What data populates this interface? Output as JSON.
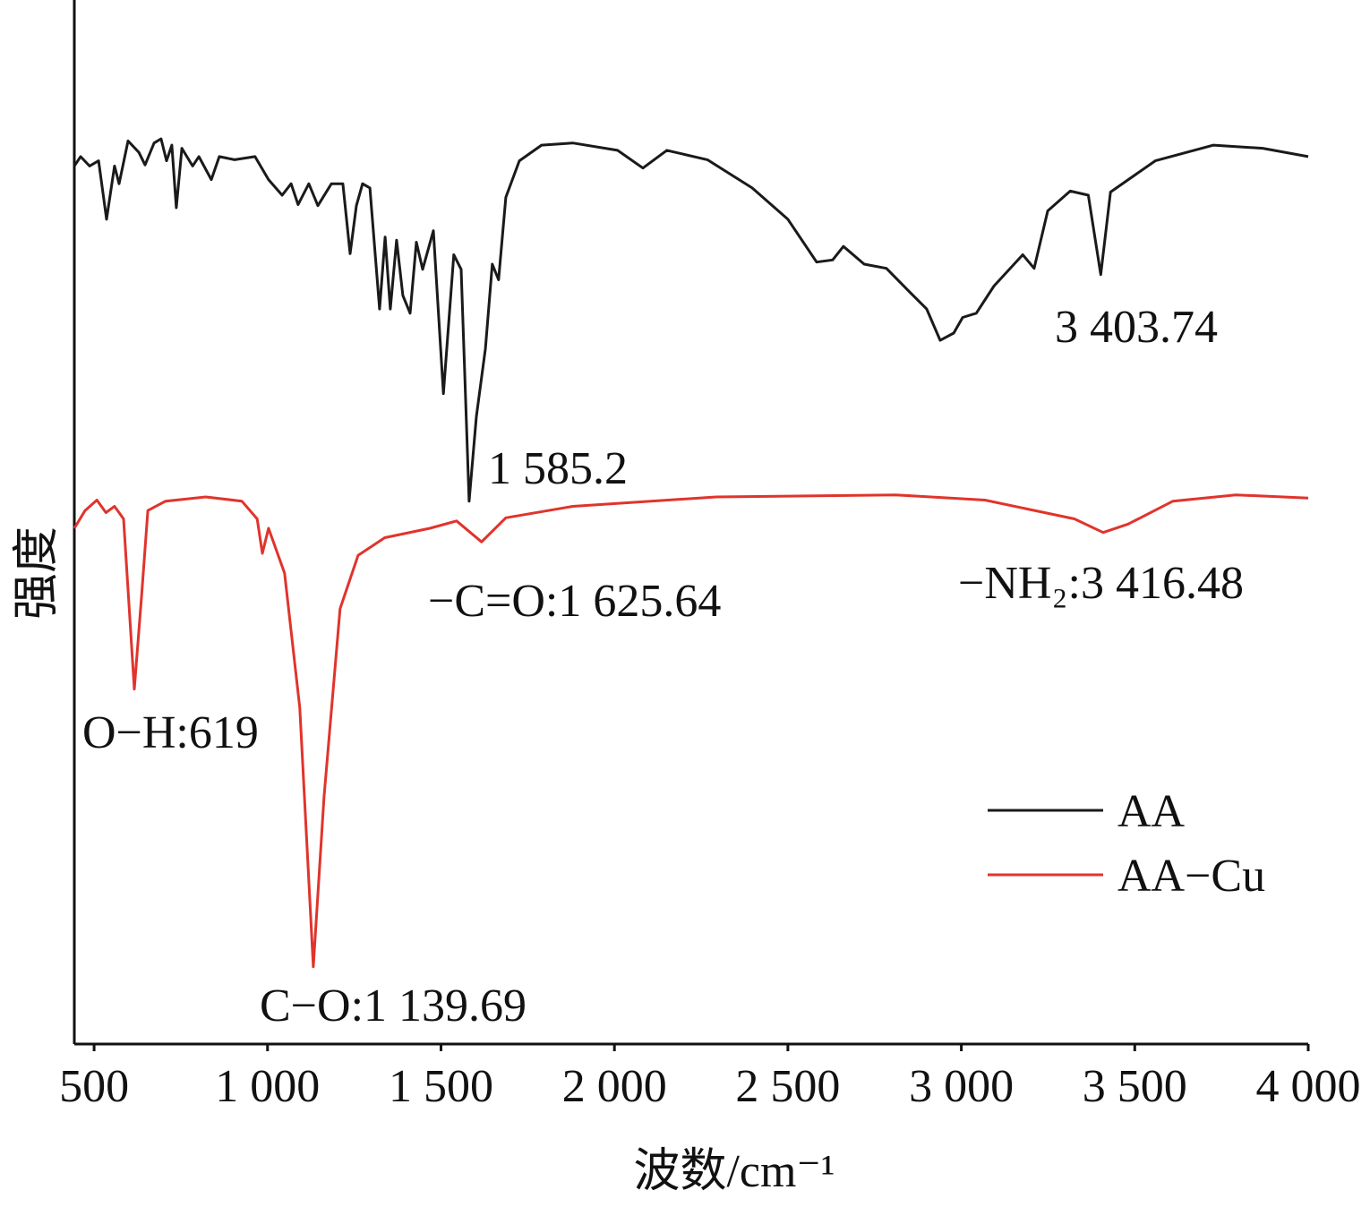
{
  "chart_data": {
    "type": "line",
    "xlabel": "波数/cm⁻¹",
    "ylabel": "强度",
    "xlim": [
      443,
      4000
    ],
    "ylim": [
      0,
      100
    ],
    "xticks": [
      500,
      {
        "value": 1000,
        "label": "1 000"
      },
      {
        "value": 1500,
        "label": "1 500"
      },
      {
        "value": 2000,
        "label": "2 000"
      },
      {
        "value": 2500,
        "label": "2 500"
      },
      {
        "value": 3000,
        "label": "3 000"
      },
      {
        "value": 3500,
        "label": "3 500"
      },
      {
        "value": 4000,
        "label": "4 000"
      }
    ],
    "legend": "right",
    "annotations": [
      "3 403.74",
      "1 585.2",
      "−C=O:1 625.64",
      "−NH₂:3 416.48",
      "O−H:619",
      "C−O:1 139.69"
    ],
    "series": [
      {
        "name": "AA",
        "color": "#1a1a1a",
        "x": [
          443,
          461,
          487,
          513,
          536,
          559,
          572,
          598,
          629,
          647,
          673,
          693,
          709,
          724,
          737,
          753,
          784,
          802,
          838,
          861,
          905,
          964,
          1003,
          1042,
          1068,
          1088,
          1119,
          1145,
          1184,
          1217,
          1238,
          1256,
          1274,
          1295,
          1323,
          1339,
          1354,
          1372,
          1390,
          1411,
          1429,
          1447,
          1478,
          1507,
          1537,
          1558,
          1581,
          1602,
          1628,
          1648,
          1666,
          1687,
          1726,
          1790,
          1880,
          2009,
          2082,
          2151,
          2268,
          2397,
          2500,
          2583,
          2629,
          2660,
          2720,
          2784,
          2849,
          2900,
          2939,
          2978,
          3004,
          3043,
          3094,
          3177,
          3210,
          3249,
          3314,
          3366,
          3402,
          3430,
          3559,
          3727,
          3869,
          4000
        ],
        "values": [
          84.1,
          85.0,
          84.1,
          84.6,
          79.0,
          84.1,
          82.4,
          86.5,
          85.4,
          84.2,
          86.3,
          86.7,
          84.6,
          86.1,
          80.1,
          85.8,
          84.1,
          85.0,
          82.8,
          85.0,
          84.7,
          85.0,
          82.8,
          81.3,
          82.4,
          80.4,
          82.4,
          80.3,
          82.4,
          82.4,
          75.7,
          80.3,
          82.4,
          82.0,
          70.4,
          77.3,
          70.4,
          77.0,
          71.7,
          70.0,
          76.8,
          74.2,
          77.9,
          62.3,
          75.6,
          74.2,
          52.0,
          60.1,
          66.6,
          74.7,
          73.2,
          81.1,
          84.6,
          86.1,
          86.3,
          85.6,
          83.9,
          85.6,
          84.7,
          82.0,
          79.0,
          74.9,
          75.1,
          76.4,
          74.7,
          74.3,
          72.1,
          70.4,
          67.4,
          68.1,
          69.6,
          70.0,
          72.6,
          75.6,
          74.3,
          79.8,
          81.7,
          81.3,
          73.7,
          81.6,
          84.6,
          86.1,
          85.8,
          85.0
        ]
      },
      {
        "name": "AA−Cu",
        "color": "#e0342c",
        "x": [
          443,
          474,
          508,
          534,
          559,
          585,
          616,
          637,
          655,
          706,
          822,
          926,
          970,
          985,
          1003,
          1049,
          1093,
          1132,
          1163,
          1209,
          1261,
          1338,
          1468,
          1545,
          1617,
          1687,
          1880,
          2293,
          2810,
          3068,
          3326,
          3409,
          3481,
          3610,
          3791,
          4000
        ],
        "values": [
          49.4,
          51.1,
          52.1,
          50.9,
          51.5,
          50.3,
          34.0,
          43.0,
          51.1,
          52.0,
          52.4,
          52.0,
          50.3,
          47.0,
          49.4,
          45.1,
          32.2,
          7.4,
          23.7,
          41.7,
          46.8,
          48.5,
          49.4,
          50.1,
          48.1,
          50.4,
          51.5,
          52.4,
          52.6,
          52.1,
          50.3,
          49.0,
          49.8,
          52.0,
          52.6,
          52.3
        ]
      }
    ]
  }
}
